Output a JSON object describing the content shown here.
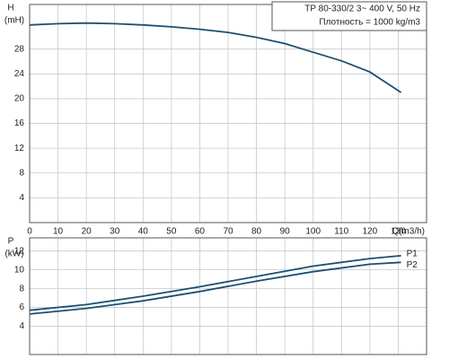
{
  "chart_data": [
    {
      "type": "line",
      "y_label": "H",
      "y_unit": "(mH)",
      "x_label": "Q(m3/h)",
      "info_title": "TP 80-330/2   3~ 400 V, 50 Hz",
      "info_density": "Плотность = 1000 kg/m3",
      "x": [
        0,
        10,
        20,
        30,
        40,
        50,
        60,
        70,
        80,
        90,
        100,
        110,
        120,
        131
      ],
      "series": [
        {
          "name": null,
          "color": "#1c4f73",
          "values": [
            31.9,
            32.1,
            32.2,
            32.1,
            31.9,
            31.6,
            31.2,
            30.7,
            29.9,
            28.9,
            27.5,
            26.1,
            24.3,
            21.0
          ]
        }
      ],
      "xlim": [
        0,
        140
      ],
      "xticks": [
        0,
        10,
        20,
        30,
        40,
        50,
        60,
        70,
        80,
        90,
        100,
        110,
        120,
        130
      ],
      "ylim": [
        0,
        35.2
      ],
      "yticks": [
        4,
        8,
        12,
        16,
        20,
        24,
        28
      ],
      "grid": true
    },
    {
      "type": "line",
      "y_label": "P",
      "y_unit": "(kW)",
      "x": [
        0,
        20,
        40,
        60,
        80,
        100,
        120,
        131
      ],
      "series": [
        {
          "name": "P1",
          "color": "#1c4f73",
          "values": [
            5.7,
            6.3,
            7.2,
            8.2,
            9.3,
            10.4,
            11.2,
            11.5
          ]
        },
        {
          "name": "P2",
          "color": "#1c4f73",
          "values": [
            5.3,
            5.9,
            6.7,
            7.7,
            8.8,
            9.8,
            10.6,
            10.8
          ]
        }
      ],
      "xlim": [
        0,
        140
      ],
      "xticks": [
        0,
        10,
        20,
        30,
        40,
        50,
        60,
        70,
        80,
        90,
        100,
        110,
        120,
        130
      ],
      "ylim": [
        1,
        13.4
      ],
      "yticks": [
        4,
        6,
        8,
        10,
        12
      ],
      "grid": true
    }
  ]
}
